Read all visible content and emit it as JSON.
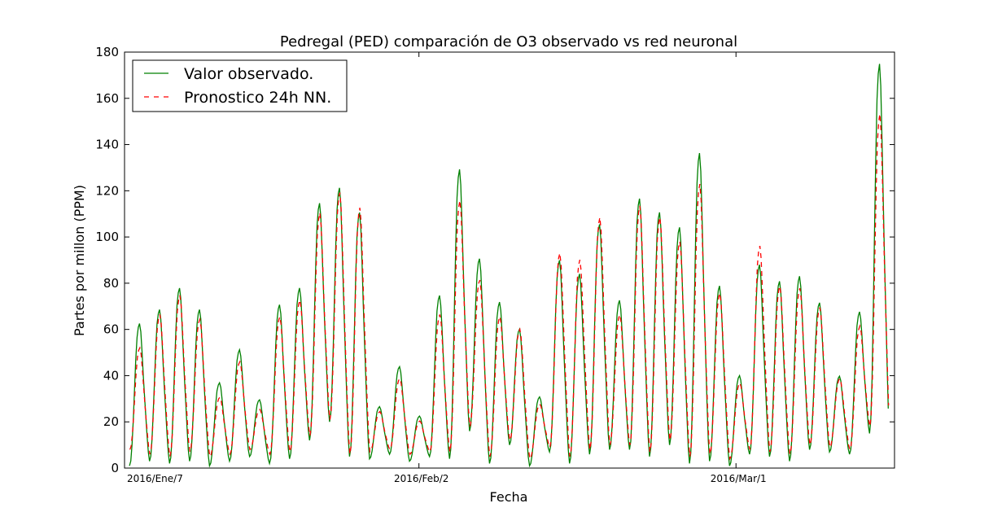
{
  "chart_data": {
    "type": "line",
    "title": "Pedregal (PED) comparación de O3 observado vs red neuronal",
    "xlabel": "Fecha",
    "ylabel": "Partes por millon (PPM)",
    "ylim": [
      0,
      180
    ],
    "yticks": [
      0,
      20,
      40,
      60,
      80,
      100,
      120,
      140,
      160,
      180
    ],
    "xlim": [
      0,
      68
    ],
    "x_tick_labels": [
      {
        "day": 0,
        "label": "2016/Ene/7"
      },
      {
        "day": 26,
        "label": "2016/Feb/2"
      },
      {
        "day": 54,
        "label": "2016/Mar/1"
      }
    ],
    "legend_position": "top-left",
    "grid": false,
    "series": [
      {
        "name": "Valor observado.",
        "style": "solid",
        "color": "#008000",
        "daily_peaks": [
          61,
          67,
          76,
          67,
          36,
          50,
          29,
          69,
          76,
          112,
          119,
          108,
          26,
          43,
          22,
          73,
          126,
          89,
          70,
          59,
          30,
          88,
          82,
          103,
          71,
          114,
          108,
          102,
          133,
          77,
          39,
          86,
          79,
          81,
          70,
          39,
          66,
          171
        ],
        "daily_lows": [
          1,
          3,
          2,
          3,
          1,
          3,
          5,
          2,
          4,
          12,
          20,
          5,
          4,
          6,
          3,
          5,
          4,
          16,
          2,
          10,
          1,
          7,
          2,
          6,
          8,
          8,
          5,
          10,
          2,
          3,
          1,
          6,
          5,
          3,
          8,
          7,
          6,
          15
        ]
      },
      {
        "name": "Pronostico 24h NN.",
        "style": "dashed",
        "color": "#ff0000",
        "daily_peaks": [
          51,
          65,
          73,
          63,
          30,
          45,
          25,
          64,
          71,
          108,
          117,
          110,
          24,
          38,
          20,
          65,
          113,
          80,
          64,
          59,
          27,
          91,
          88,
          106,
          65,
          111,
          106,
          96,
          120,
          74,
          36,
          94,
          77,
          76,
          68,
          38,
          60,
          150
        ],
        "daily_lows": [
          8,
          6,
          5,
          7,
          5,
          6,
          8,
          6,
          7,
          14,
          21,
          6,
          7,
          8,
          6,
          7,
          7,
          18,
          5,
          12,
          4,
          9,
          5,
          8,
          10,
          10,
          7,
          12,
          5,
          6,
          4,
          8,
          7,
          6,
          10,
          9,
          8,
          18
        ]
      }
    ]
  }
}
